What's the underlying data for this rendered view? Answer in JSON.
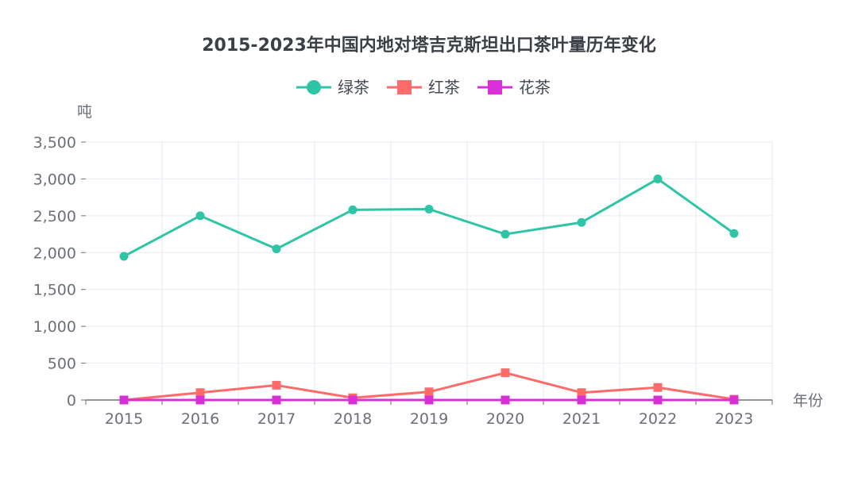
{
  "chart_data": {
    "type": "line",
    "title": "2015-2023年中国内地对塔吉克斯坦出口茶叶量历年变化",
    "xlabel": "年份",
    "ylabel": "吨",
    "categories": [
      "2015",
      "2016",
      "2017",
      "2018",
      "2019",
      "2020",
      "2021",
      "2022",
      "2023"
    ],
    "ylim": [
      0,
      3500
    ],
    "yticks": [
      0,
      500,
      1000,
      1500,
      2000,
      2500,
      3000,
      3500
    ],
    "ytick_labels": [
      "0",
      "500",
      "1,000",
      "1,500",
      "2,000",
      "2,500",
      "3,000",
      "3,500"
    ],
    "grid": true,
    "legend_position": "top-center",
    "series": [
      {
        "name": "绿茶",
        "color": "#2ec4a6",
        "marker": "circle",
        "values": [
          1950,
          2500,
          2050,
          2580,
          2590,
          2250,
          2410,
          3000,
          2260
        ]
      },
      {
        "name": "红茶",
        "color": "#ff6b6b",
        "marker": "square",
        "values": [
          0,
          100,
          200,
          30,
          110,
          370,
          100,
          170,
          10
        ]
      },
      {
        "name": "花茶",
        "color": "#d92fd9",
        "marker": "square",
        "values": [
          0,
          0,
          0,
          0,
          0,
          0,
          0,
          0,
          0
        ]
      }
    ]
  }
}
